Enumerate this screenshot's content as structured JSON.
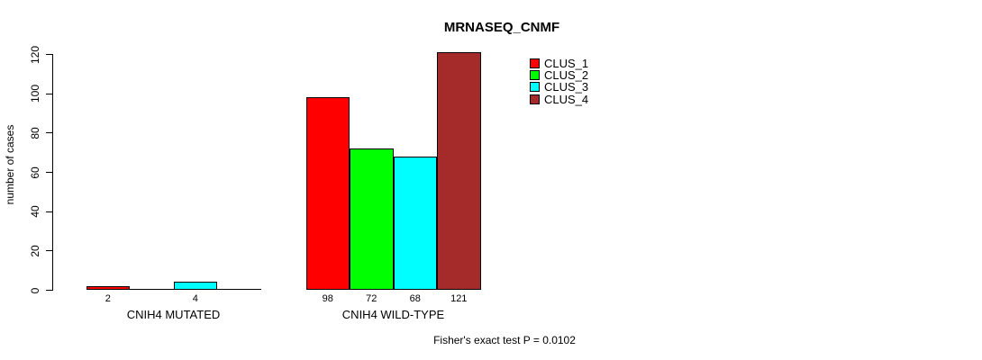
{
  "page": {
    "background": "#ffffff",
    "text_color": "#000000"
  },
  "chart_data": {
    "type": "bar",
    "title": "MRNASEQ_CNMF",
    "ylabel": "number of cases",
    "xlabel": "",
    "footer": "Fisher's exact test P = 0.0102",
    "grid": false,
    "legend_position": "top-right",
    "ylim": [
      0,
      121
    ],
    "yticks": [
      0,
      20,
      40,
      60,
      80,
      100,
      120
    ],
    "categories": [
      "CNIH4 MUTATED",
      "CNIH4 WILD-TYPE"
    ],
    "series": [
      {
        "name": "CLUS_1",
        "color": "#FF0000",
        "values": [
          2,
          98
        ],
        "labels": [
          "2",
          "98"
        ]
      },
      {
        "name": "CLUS_2",
        "color": "#00FF00",
        "values": [
          0,
          72
        ],
        "labels": [
          "",
          "72"
        ]
      },
      {
        "name": "CLUS_3",
        "color": "#00FFFF",
        "values": [
          4,
          68
        ],
        "labels": [
          "4",
          "68"
        ]
      },
      {
        "name": "CLUS_4",
        "color": "#A52A2A",
        "values": [
          0,
          121
        ],
        "labels": [
          "",
          "121"
        ]
      }
    ]
  }
}
